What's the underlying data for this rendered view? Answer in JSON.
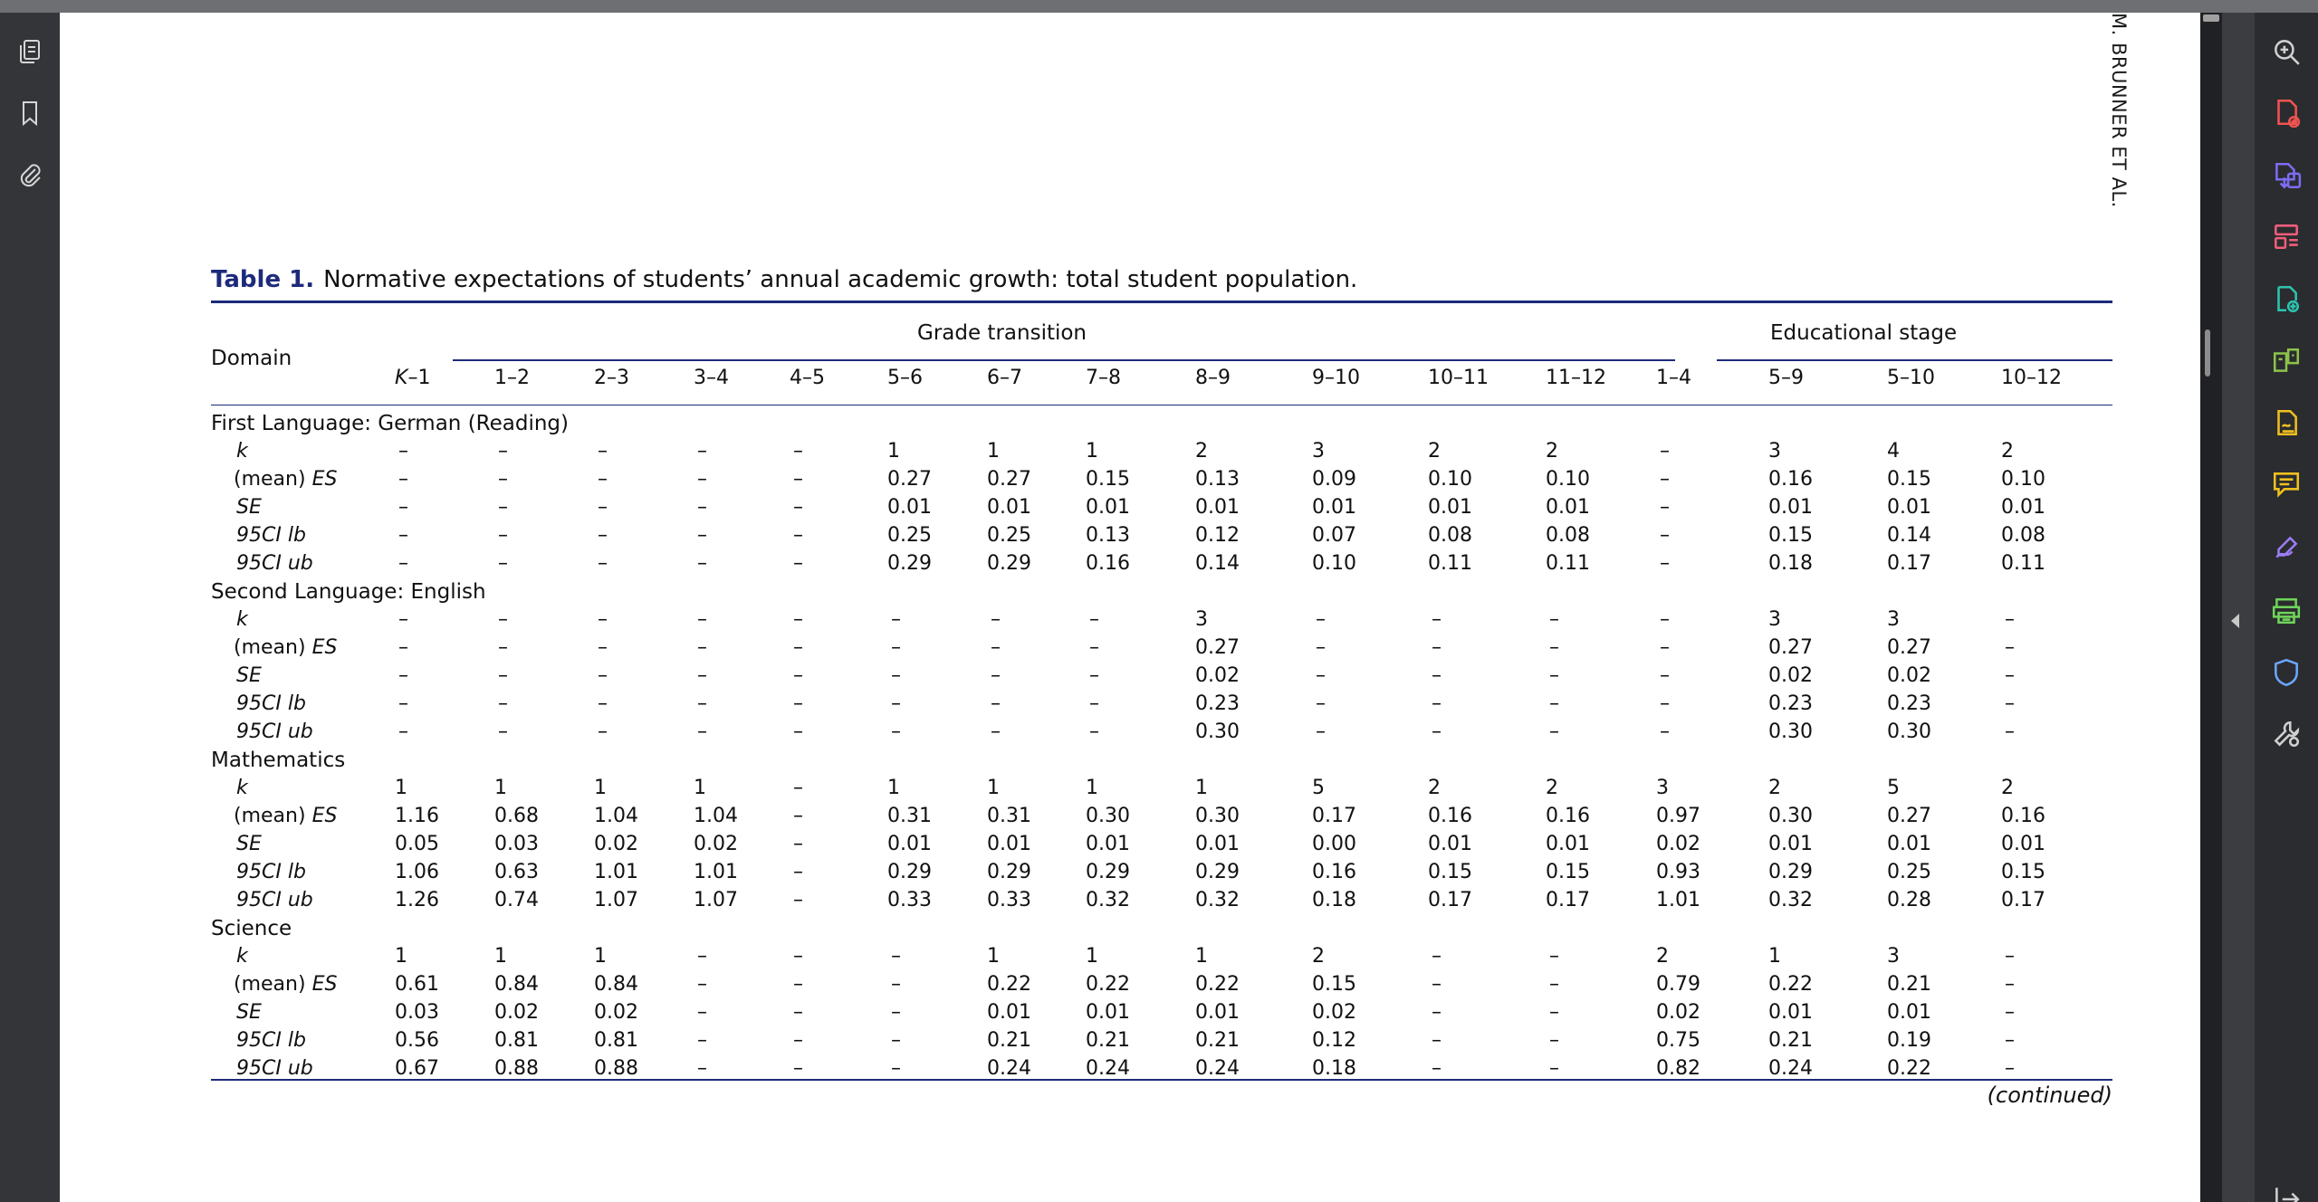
{
  "running_head": "M. BRUNNER ET AL.",
  "caption": {
    "label": "Table 1.",
    "text": "Normative expectations of students’ annual academic growth: total student population."
  },
  "table": {
    "domain_header": "Domain",
    "group_grade": "Grade transition",
    "group_stage": "Educational stage",
    "columns": [
      "K–1",
      "1–2",
      "2–3",
      "3–4",
      "4–5",
      "5–6",
      "6–7",
      "7–8",
      "8–9",
      "9–10",
      "10–11",
      "11–12",
      "1–4",
      "5–9",
      "5–10",
      "10–12"
    ],
    "stat_labels": [
      "k",
      "(mean) ES",
      "SE",
      "95CI lb",
      "95CI ub"
    ],
    "sections": [
      {
        "title": "First Language: German (Reading)",
        "rows": [
          [
            "–",
            "–",
            "–",
            "–",
            "–",
            "1",
            "1",
            "1",
            "2",
            "3",
            "2",
            "2",
            "–",
            "3",
            "4",
            "2"
          ],
          [
            "–",
            "–",
            "–",
            "–",
            "–",
            "0.27",
            "0.27",
            "0.15",
            "0.13",
            "0.09",
            "0.10",
            "0.10",
            "–",
            "0.16",
            "0.15",
            "0.10"
          ],
          [
            "–",
            "–",
            "–",
            "–",
            "–",
            "0.01",
            "0.01",
            "0.01",
            "0.01",
            "0.01",
            "0.01",
            "0.01",
            "–",
            "0.01",
            "0.01",
            "0.01"
          ],
          [
            "–",
            "–",
            "–",
            "–",
            "–",
            "0.25",
            "0.25",
            "0.13",
            "0.12",
            "0.07",
            "0.08",
            "0.08",
            "–",
            "0.15",
            "0.14",
            "0.08"
          ],
          [
            "–",
            "–",
            "–",
            "–",
            "–",
            "0.29",
            "0.29",
            "0.16",
            "0.14",
            "0.10",
            "0.11",
            "0.11",
            "–",
            "0.18",
            "0.17",
            "0.11"
          ]
        ]
      },
      {
        "title": "Second Language: English",
        "rows": [
          [
            "–",
            "–",
            "–",
            "–",
            "–",
            "–",
            "–",
            "–",
            "3",
            "–",
            "–",
            "–",
            "–",
            "3",
            "3",
            "–"
          ],
          [
            "–",
            "–",
            "–",
            "–",
            "–",
            "–",
            "–",
            "–",
            "0.27",
            "–",
            "–",
            "–",
            "–",
            "0.27",
            "0.27",
            "–"
          ],
          [
            "–",
            "–",
            "–",
            "–",
            "–",
            "–",
            "–",
            "–",
            "0.02",
            "–",
            "–",
            "–",
            "–",
            "0.02",
            "0.02",
            "–"
          ],
          [
            "–",
            "–",
            "–",
            "–",
            "–",
            "–",
            "–",
            "–",
            "0.23",
            "–",
            "–",
            "–",
            "–",
            "0.23",
            "0.23",
            "–"
          ],
          [
            "–",
            "–",
            "–",
            "–",
            "–",
            "–",
            "–",
            "–",
            "0.30",
            "–",
            "–",
            "–",
            "–",
            "0.30",
            "0.30",
            "–"
          ]
        ]
      },
      {
        "title": "Mathematics",
        "rows": [
          [
            "1",
            "1",
            "1",
            "1",
            "–",
            "1",
            "1",
            "1",
            "1",
            "5",
            "2",
            "2",
            "3",
            "2",
            "5",
            "2"
          ],
          [
            "1.16",
            "0.68",
            "1.04",
            "1.04",
            "–",
            "0.31",
            "0.31",
            "0.30",
            "0.30",
            "0.17",
            "0.16",
            "0.16",
            "0.97",
            "0.30",
            "0.27",
            "0.16"
          ],
          [
            "0.05",
            "0.03",
            "0.02",
            "0.02",
            "–",
            "0.01",
            "0.01",
            "0.01",
            "0.01",
            "0.00",
            "0.01",
            "0.01",
            "0.02",
            "0.01",
            "0.01",
            "0.01"
          ],
          [
            "1.06",
            "0.63",
            "1.01",
            "1.01",
            "–",
            "0.29",
            "0.29",
            "0.29",
            "0.29",
            "0.16",
            "0.15",
            "0.15",
            "0.93",
            "0.29",
            "0.25",
            "0.15"
          ],
          [
            "1.26",
            "0.74",
            "1.07",
            "1.07",
            "–",
            "0.33",
            "0.33",
            "0.32",
            "0.32",
            "0.18",
            "0.17",
            "0.17",
            "1.01",
            "0.32",
            "0.28",
            "0.17"
          ]
        ]
      },
      {
        "title": "Science",
        "rows": [
          [
            "1",
            "1",
            "1",
            "–",
            "–",
            "–",
            "1",
            "1",
            "1",
            "2",
            "–",
            "–",
            "2",
            "1",
            "3",
            "–"
          ],
          [
            "0.61",
            "0.84",
            "0.84",
            "–",
            "–",
            "–",
            "0.22",
            "0.22",
            "0.22",
            "0.15",
            "–",
            "–",
            "0.79",
            "0.22",
            "0.21",
            "–"
          ],
          [
            "0.03",
            "0.02",
            "0.02",
            "–",
            "–",
            "–",
            "0.01",
            "0.01",
            "0.01",
            "0.02",
            "–",
            "–",
            "0.02",
            "0.01",
            "0.01",
            "–"
          ],
          [
            "0.56",
            "0.81",
            "0.81",
            "–",
            "–",
            "–",
            "0.21",
            "0.21",
            "0.21",
            "0.12",
            "–",
            "–",
            "0.75",
            "0.21",
            "0.19",
            "–"
          ],
          [
            "0.67",
            "0.88",
            "0.88",
            "–",
            "–",
            "–",
            "0.24",
            "0.24",
            "0.24",
            "0.18",
            "–",
            "–",
            "0.82",
            "0.24",
            "0.22",
            "–"
          ]
        ]
      }
    ]
  },
  "continued": "(continued)",
  "left_tools": [
    {
      "name": "pages-icon"
    },
    {
      "name": "bookmark-icon"
    },
    {
      "name": "attachment-icon"
    }
  ],
  "right_tools": [
    {
      "name": "zoom-icon",
      "color": "#d0d0d0"
    },
    {
      "name": "create-pdf-icon",
      "color": "#ef5350"
    },
    {
      "name": "export-pdf-icon",
      "color": "#7c6cf2"
    },
    {
      "name": "organize-pages-icon",
      "color": "#ef5e7a"
    },
    {
      "name": "edit-pdf-icon",
      "color": "#2cc4b0"
    },
    {
      "name": "combine-files-icon",
      "color": "#8bc34a"
    },
    {
      "name": "fill-sign-icon",
      "color": "#f0c020"
    },
    {
      "name": "comment-icon",
      "color": "#f0c020"
    },
    {
      "name": "draw-icon",
      "color": "#9b7cf5"
    },
    {
      "name": "print-production-icon",
      "color": "#6fd35a"
    },
    {
      "name": "protect-icon",
      "color": "#6aa6ff"
    },
    {
      "name": "more-tools-icon",
      "color": "#d0d0d0"
    }
  ],
  "colors": {
    "accent": "#1d2a7a",
    "rail_dark": "#2b2c2f",
    "canvas": "#535659"
  }
}
